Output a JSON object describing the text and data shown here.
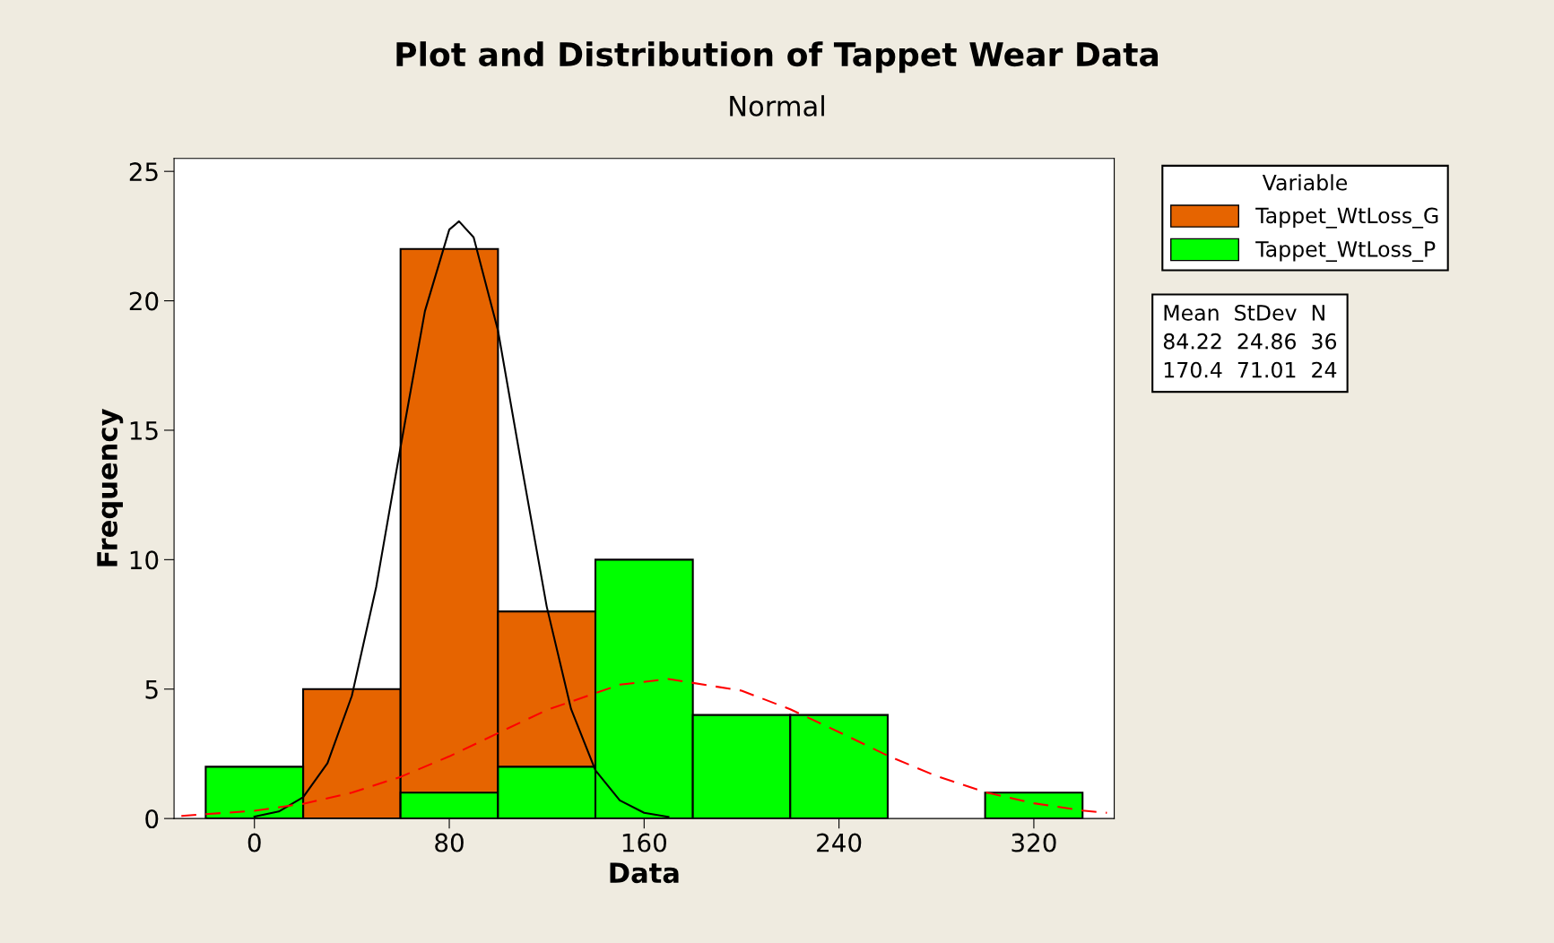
{
  "chart_data": {
    "type": "histogram",
    "title": "Plot and Distribution of Tappet Wear Data",
    "subtitle": "Normal",
    "xlabel": "Data",
    "ylabel": "Frequency",
    "legend_title": "Variable",
    "bins": [
      -20,
      20,
      60,
      100,
      140,
      180,
      220,
      260,
      300,
      340
    ],
    "series": [
      {
        "name": "Tappet_WtLoss_G",
        "color": "#e66400",
        "values": [
          0,
          5,
          22,
          8,
          0,
          0,
          0,
          0,
          0
        ]
      },
      {
        "name": "Tappet_WtLoss_P",
        "color": "#00ff00",
        "values": [
          2,
          0,
          1,
          2,
          10,
          4,
          4,
          0,
          1
        ]
      },
      {
        "type": "line",
        "color": "#000000",
        "line_style": "solid",
        "x": [
          0,
          10,
          20,
          30,
          40,
          50,
          60,
          70,
          80,
          84,
          90,
          100,
          110,
          120,
          130,
          140,
          150,
          160,
          170
        ],
        "values": [
          0.07,
          0.27,
          0.82,
          2.14,
          4.74,
          8.95,
          14.35,
          19.6,
          22.75,
          23.07,
          22.45,
          18.85,
          13.47,
          8.19,
          4.23,
          1.86,
          0.7,
          0.22,
          0.06
        ]
      },
      {
        "type": "line",
        "color": "#ff0000",
        "line_style": "dashed",
        "x": [
          -30,
          0,
          20,
          40,
          60,
          80,
          100,
          120,
          150,
          170,
          200,
          220,
          240,
          260,
          280,
          300,
          320,
          340,
          350
        ],
        "values": [
          0.1,
          0.3,
          0.57,
          1.0,
          1.61,
          2.4,
          3.3,
          4.19,
          5.17,
          5.39,
          4.94,
          4.22,
          3.34,
          2.43,
          1.64,
          1.02,
          0.59,
          0.31,
          0.22
        ]
      }
    ],
    "xlim": [
      -33,
      353
    ],
    "xticks": [
      0,
      80,
      160,
      240,
      320
    ],
    "ylim": [
      0,
      25.5
    ],
    "yticks": [
      0,
      5,
      10,
      15,
      20,
      25
    ],
    "grid": false,
    "legend": "right",
    "marker": "none",
    "annotations": [
      "Mean  StDev  N",
      "84.22  24.86  36",
      "170.4  71.01  24"
    ]
  }
}
